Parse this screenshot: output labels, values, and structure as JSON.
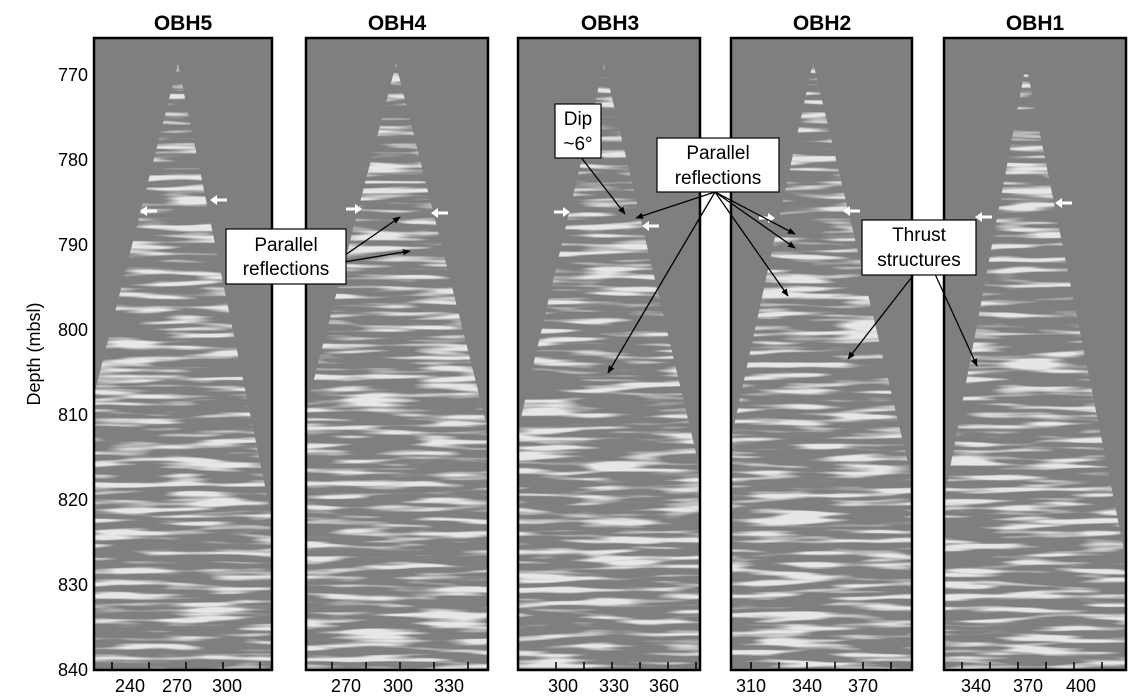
{
  "figure": {
    "ylabel": "Depth (mbsl)",
    "y_ticks": [
      "770",
      "780",
      "790",
      "800",
      "810",
      "820",
      "830",
      "840"
    ],
    "colors": {
      "background": "#7f7f7f",
      "wiggle_light": "#e6e6e6",
      "wiggle_dark": "#1e1e1e",
      "frame": "#000000",
      "marker": "#ffffff"
    },
    "panels": [
      {
        "title": "OBH5",
        "x_ticks": [
          "240",
          "270",
          "300"
        ]
      },
      {
        "title": "OBH4",
        "x_ticks": [
          "270",
          "300",
          "330"
        ]
      },
      {
        "title": "OBH3",
        "x_ticks": [
          "300",
          "330",
          "360"
        ]
      },
      {
        "title": "OBH2",
        "x_ticks": [
          "310",
          "340",
          "370"
        ]
      },
      {
        "title": "OBH1",
        "x_ticks": [
          "340",
          "370",
          "400"
        ]
      }
    ],
    "annotations": {
      "parallel_left": [
        "Parallel",
        "reflections"
      ],
      "dip": [
        "Dip",
        "~6°"
      ],
      "parallel_right": [
        "Parallel",
        "reflections"
      ],
      "thrust": [
        "Thrust",
        "structures"
      ]
    }
  }
}
